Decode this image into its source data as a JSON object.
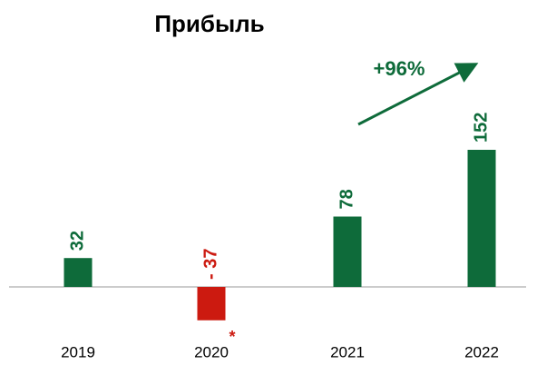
{
  "chart_data": {
    "type": "bar",
    "title": "Прибыль",
    "categories": [
      "2019",
      "2020",
      "2021",
      "2022"
    ],
    "values": [
      32,
      -37,
      78,
      152
    ],
    "value_labels": [
      "32",
      "- 37",
      "78",
      "152"
    ],
    "colors": [
      "#0e6b3a",
      "#cc1a10",
      "#0e6b3a",
      "#0e6b3a"
    ],
    "annotations": [
      "+96%",
      "*"
    ]
  }
}
